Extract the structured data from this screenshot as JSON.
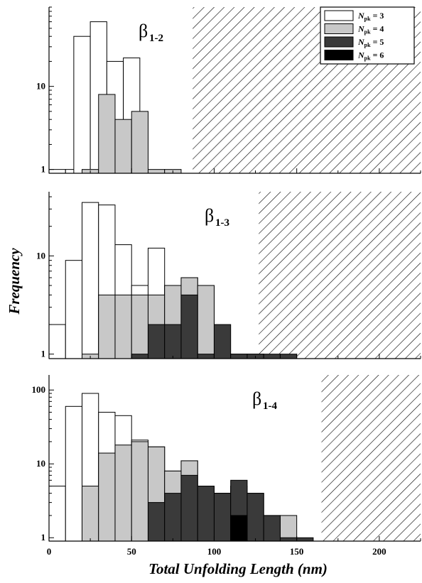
{
  "chart_data": {
    "type": "bar",
    "stacked": false,
    "log_scale_y": true,
    "bin_width_nm": 10,
    "xlabel": "Total Unfolding Length (nm)",
    "ylabel": "Frequency",
    "xlim": [
      0,
      225
    ],
    "x_ticks": [
      "0",
      "50",
      "100",
      "150",
      "200"
    ],
    "legend": {
      "position": "top-right",
      "entries": [
        {
          "symbol": "N",
          "sub": "pk",
          "value": "= 3",
          "color": "#ffffff"
        },
        {
          "symbol": "N",
          "sub": "pk",
          "value": "= 4",
          "color": "#c8c8c8"
        },
        {
          "symbol": "N",
          "sub": "pk",
          "value": "= 5",
          "color": "#3a3a3a"
        },
        {
          "symbol": "N",
          "sub": "pk",
          "value": "= 6",
          "color": "#000000"
        }
      ]
    },
    "panels": [
      {
        "label_main": "β",
        "label_sub": "1-2",
        "ylim": [
          0.9,
          90
        ],
        "y_ticks": [
          "1",
          "10"
        ],
        "hatch_start": 87,
        "series": [
          {
            "name": "Npk = 3",
            "bins": [
              [
                0,
                1
              ],
              [
                10,
                1
              ],
              [
                15,
                40
              ],
              [
                25,
                60
              ],
              [
                35,
                20
              ],
              [
                45,
                22
              ]
            ]
          },
          {
            "name": "Npk = 4",
            "bins": [
              [
                20,
                1
              ],
              [
                30,
                8
              ],
              [
                40,
                4
              ],
              [
                50,
                5
              ],
              [
                60,
                1
              ],
              [
                70,
                1
              ]
            ]
          }
        ]
      },
      {
        "label_main": "β",
        "label_sub": "1-3",
        "ylim": [
          0.9,
          45
        ],
        "y_ticks": [
          "1",
          "10"
        ],
        "hatch_start": 127,
        "series": [
          {
            "name": "Npk = 3",
            "bins": [
              [
                0,
                2
              ],
              [
                10,
                9
              ],
              [
                20,
                35
              ],
              [
                30,
                33
              ],
              [
                40,
                13
              ],
              [
                50,
                5
              ],
              [
                60,
                12
              ],
              [
                70,
                5
              ],
              [
                80,
                6
              ],
              [
                90,
                5
              ]
            ]
          },
          {
            "name": "Npk = 4",
            "bins": [
              [
                20,
                1
              ],
              [
                30,
                4
              ],
              [
                40,
                4
              ],
              [
                50,
                4
              ],
              [
                60,
                4
              ],
              [
                70,
                5
              ],
              [
                80,
                6
              ],
              [
                90,
                5
              ],
              [
                110,
                1
              ],
              [
                120,
                1
              ]
            ]
          },
          {
            "name": "Npk = 5",
            "bins": [
              [
                50,
                1
              ],
              [
                60,
                2
              ],
              [
                70,
                2
              ],
              [
                80,
                4
              ],
              [
                90,
                1
              ],
              [
                100,
                2
              ],
              [
                110,
                1
              ],
              [
                120,
                1
              ],
              [
                130,
                1
              ],
              [
                140,
                1
              ]
            ]
          }
        ]
      },
      {
        "label_main": "β",
        "label_sub": "1-4",
        "ylim": [
          0.9,
          160
        ],
        "y_ticks": [
          "1",
          "10",
          "100"
        ],
        "hatch_start": 165,
        "series": [
          {
            "name": "Npk = 3",
            "bins": [
              [
                0,
                5
              ],
              [
                10,
                60
              ],
              [
                20,
                90
              ],
              [
                30,
                50
              ],
              [
                40,
                45
              ],
              [
                50,
                21
              ],
              [
                60,
                17
              ],
              [
                70,
                8
              ],
              [
                80,
                11
              ],
              [
                90,
                5
              ],
              [
                100,
                4
              ],
              [
                110,
                5
              ]
            ]
          },
          {
            "name": "Npk = 4",
            "bins": [
              [
                20,
                5
              ],
              [
                30,
                14
              ],
              [
                40,
                18
              ],
              [
                50,
                20
              ],
              [
                60,
                17
              ],
              [
                70,
                8
              ],
              [
                80,
                11
              ],
              [
                90,
                5
              ],
              [
                100,
                4
              ],
              [
                110,
                5
              ],
              [
                120,
                4
              ],
              [
                130,
                2
              ],
              [
                140,
                2
              ]
            ]
          },
          {
            "name": "Npk = 5",
            "bins": [
              [
                60,
                3
              ],
              [
                70,
                4
              ],
              [
                80,
                7
              ],
              [
                90,
                5
              ],
              [
                100,
                4
              ],
              [
                110,
                6
              ],
              [
                120,
                4
              ],
              [
                130,
                2
              ],
              [
                140,
                1
              ],
              [
                150,
                1
              ]
            ]
          },
          {
            "name": "Npk = 6",
            "bins": [
              [
                110,
                2
              ]
            ]
          }
        ]
      }
    ]
  }
}
